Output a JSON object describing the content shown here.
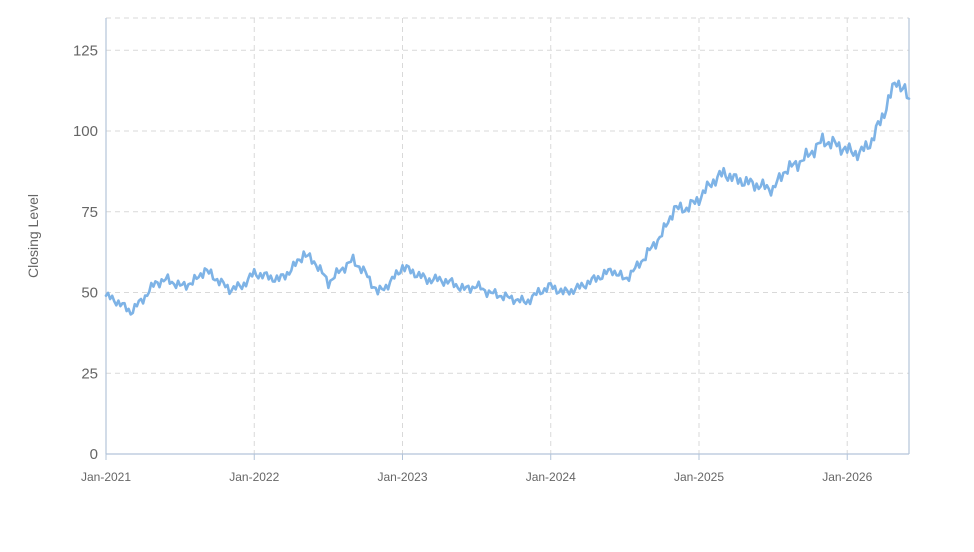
{
  "chart_data": {
    "type": "line",
    "title": "",
    "xlabel": "",
    "ylabel": "Closing Level",
    "x_ticks": [
      "Jan-2021",
      "Jan-2022",
      "Jan-2023",
      "Jan-2024",
      "Jan-2025",
      "Jan-2026"
    ],
    "y_ticks": [
      "0",
      "25",
      "50",
      "75",
      "100",
      "125"
    ],
    "ylim": [
      0,
      135
    ],
    "xlim": [
      "2021-01",
      "2026-06"
    ],
    "grid": true,
    "legend": "none",
    "line_color": "#7eb3e6",
    "series": [
      {
        "x": [
          "2021-01",
          "2021-02",
          "2021-03",
          "2021-04",
          "2021-05",
          "2021-06",
          "2021-07",
          "2021-08",
          "2021-09",
          "2021-10",
          "2021-11",
          "2021-12",
          "2022-01",
          "2022-02",
          "2022-03",
          "2022-04",
          "2022-05",
          "2022-06",
          "2022-07",
          "2022-08",
          "2022-09",
          "2022-10",
          "2022-11",
          "2022-12",
          "2023-01",
          "2023-02",
          "2023-03",
          "2023-04",
          "2023-05",
          "2023-06",
          "2023-07",
          "2023-08",
          "2023-09",
          "2023-10",
          "2023-11",
          "2023-12",
          "2024-01",
          "2024-02",
          "2024-03",
          "2024-04",
          "2024-05",
          "2024-06",
          "2024-07",
          "2024-08",
          "2024-09",
          "2024-10",
          "2024-11",
          "2024-12",
          "2025-01",
          "2025-02",
          "2025-03",
          "2025-04",
          "2025-05",
          "2025-06",
          "2025-07",
          "2025-08",
          "2025-09",
          "2025-10",
          "2025-11",
          "2025-12",
          "2026-01",
          "2026-02",
          "2026-03",
          "2026-04",
          "2026-05",
          "2026-06"
        ],
        "y": [
          49,
          47,
          44,
          48,
          53,
          54,
          52,
          53,
          57,
          54,
          51,
          52,
          56,
          55,
          54,
          57,
          62,
          59,
          53,
          57,
          60,
          56,
          50,
          53,
          58,
          56,
          54,
          54,
          53,
          51,
          52,
          50,
          49,
          48,
          47,
          50,
          52,
          50,
          51,
          53,
          55,
          57,
          54,
          58,
          63,
          68,
          76,
          76,
          79,
          84,
          87,
          85,
          84,
          83,
          82,
          88,
          90,
          93,
          97,
          96,
          94,
          93,
          97,
          106,
          116,
          110
        ]
      }
    ]
  }
}
